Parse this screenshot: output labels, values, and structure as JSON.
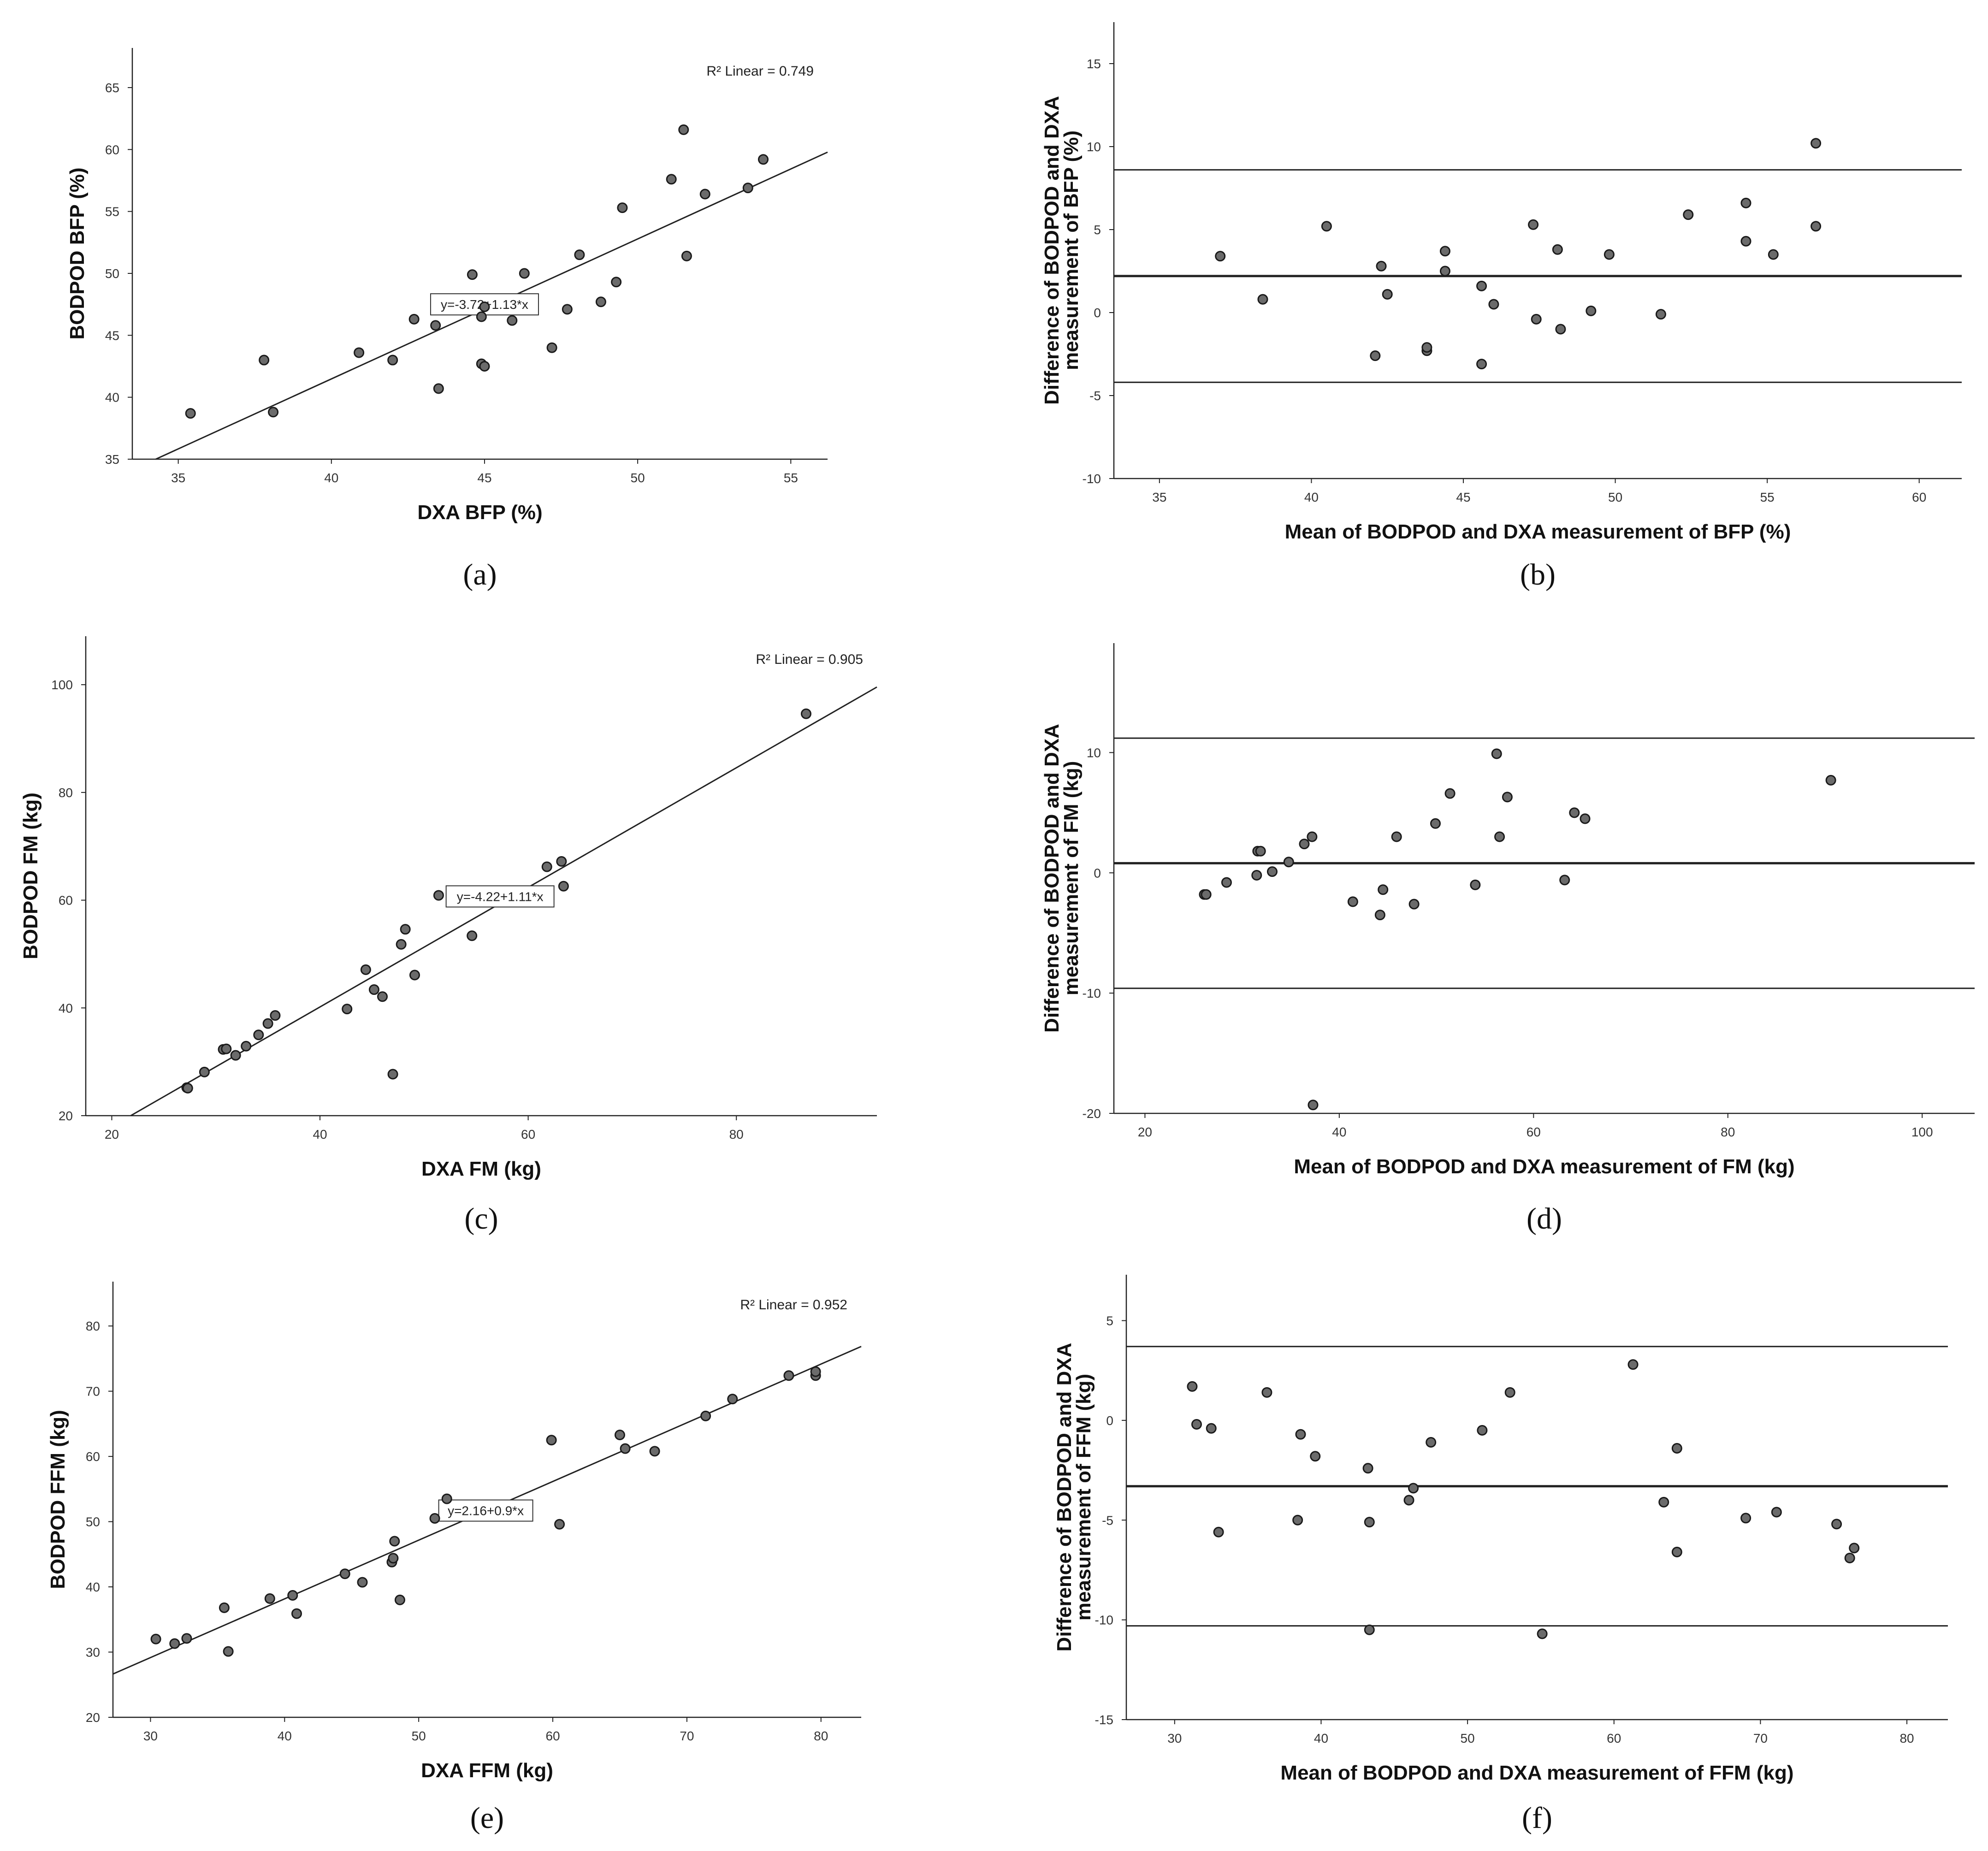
{
  "chart_data": [
    {
      "panel": "(a)",
      "type": "scatter",
      "plot": "regression",
      "xlabel": "DXA BFP (%)",
      "ylabel": "BODPOD BFP (%)",
      "xlim": [
        33.5,
        56.2
      ],
      "ylim": [
        35,
        68.2
      ],
      "xticks": [
        35,
        40,
        45,
        50,
        55
      ],
      "yticks": [
        35,
        40,
        45,
        50,
        55,
        60,
        65
      ],
      "r2_text": "R² Linear = 0.749",
      "equation": "y=-3.72+1.13*x",
      "equation_at": [
        45.0,
        47.5
      ],
      "fit": {
        "intercept": -3.72,
        "slope": 1.13
      },
      "points": [
        [
          35.4,
          38.7
        ],
        [
          37.8,
          43.0
        ],
        [
          38.1,
          38.8
        ],
        [
          40.9,
          43.6
        ],
        [
          42.0,
          43.0
        ],
        [
          42.7,
          46.3
        ],
        [
          43.4,
          45.8
        ],
        [
          43.5,
          40.7
        ],
        [
          44.6,
          49.9
        ],
        [
          44.9,
          42.7
        ],
        [
          45.0,
          42.5
        ],
        [
          44.9,
          46.5
        ],
        [
          45.0,
          47.3
        ],
        [
          45.9,
          46.2
        ],
        [
          46.3,
          50.0
        ],
        [
          47.2,
          44.0
        ],
        [
          47.7,
          47.1
        ],
        [
          48.1,
          51.5
        ],
        [
          48.8,
          47.7
        ],
        [
          49.3,
          49.3
        ],
        [
          49.5,
          55.3
        ],
        [
          51.1,
          57.6
        ],
        [
          51.5,
          61.6
        ],
        [
          51.6,
          51.4
        ],
        [
          52.2,
          56.4
        ],
        [
          53.6,
          56.9
        ],
        [
          54.1,
          59.2
        ]
      ]
    },
    {
      "panel": "(b)",
      "type": "scatter",
      "plot": "bland-altman",
      "xlabel": "Mean of BODPOD and DXA measurement of BFP (%)",
      "ylabel": [
        "Difference of BODPOD and DXA",
        "measurement of BFP (%)"
      ],
      "xlim": [
        33.5,
        61.4
      ],
      "ylim": [
        -10,
        17.5
      ],
      "xticks": [
        35,
        40,
        45,
        50,
        55,
        60
      ],
      "yticks": [
        -10,
        -5,
        0,
        5,
        10,
        15
      ],
      "hlines": [
        8.6,
        2.2,
        -4.2
      ],
      "points": [
        [
          37.0,
          3.4
        ],
        [
          38.4,
          0.8
        ],
        [
          40.5,
          5.2
        ],
        [
          42.1,
          -2.6
        ],
        [
          42.3,
          2.8
        ],
        [
          42.5,
          1.1
        ],
        [
          43.8,
          -2.3
        ],
        [
          43.8,
          -2.1
        ],
        [
          44.4,
          3.7
        ],
        [
          44.4,
          2.5
        ],
        [
          45.6,
          1.6
        ],
        [
          45.6,
          -3.1
        ],
        [
          46.0,
          0.5
        ],
        [
          47.3,
          5.3
        ],
        [
          47.4,
          -0.4
        ],
        [
          48.1,
          3.8
        ],
        [
          48.2,
          -1.0
        ],
        [
          49.2,
          0.1
        ],
        [
          49.8,
          3.5
        ],
        [
          51.5,
          -0.1
        ],
        [
          52.4,
          5.9
        ],
        [
          54.3,
          6.6
        ],
        [
          54.3,
          4.3
        ],
        [
          55.2,
          3.5
        ],
        [
          56.6,
          10.2
        ],
        [
          56.6,
          5.2
        ]
      ]
    },
    {
      "panel": "(c)",
      "type": "scatter",
      "plot": "regression",
      "xlabel": "DXA FM (kg)",
      "ylabel": "BODPOD FM (kg)",
      "xlim": [
        17.5,
        93.5
      ],
      "ylim": [
        20,
        109
      ],
      "xticks": [
        20,
        40,
        60,
        80
      ],
      "yticks": [
        20,
        40,
        60,
        80,
        100
      ],
      "r2_text": "R² Linear = 0.905",
      "equation": "y=-4.22+1.11*x",
      "equation_at": [
        57.3,
        60.7
      ],
      "fit": {
        "intercept": -4.22,
        "slope": 1.11
      },
      "points": [
        [
          27.2,
          25.2
        ],
        [
          27.3,
          25.1
        ],
        [
          28.9,
          28.1
        ],
        [
          30.7,
          32.3
        ],
        [
          31.0,
          32.4
        ],
        [
          31.9,
          31.2
        ],
        [
          32.9,
          32.9
        ],
        [
          34.1,
          35.0
        ],
        [
          35.0,
          37.1
        ],
        [
          35.7,
          38.6
        ],
        [
          42.6,
          39.8
        ],
        [
          44.4,
          47.1
        ],
        [
          45.2,
          43.4
        ],
        [
          46.0,
          42.1
        ],
        [
          47.0,
          27.7
        ],
        [
          47.8,
          51.8
        ],
        [
          48.2,
          54.6
        ],
        [
          49.1,
          46.1
        ],
        [
          51.4,
          60.9
        ],
        [
          54.6,
          53.4
        ],
        [
          61.8,
          66.2
        ],
        [
          63.2,
          67.2
        ],
        [
          63.4,
          62.6
        ],
        [
          86.7,
          94.6
        ]
      ]
    },
    {
      "panel": "(d)",
      "type": "scatter",
      "plot": "bland-altman",
      "xlabel": "Mean of BODPOD and DXA measurement of FM (kg)",
      "ylabel": [
        "Difference of BODPOD and DXA",
        "measurement of FM (kg)"
      ],
      "xlim": [
        16.8,
        105.4
      ],
      "ylim": [
        -20,
        19.1
      ],
      "xticks": [
        20,
        40,
        60,
        80,
        100
      ],
      "yticks": [
        -20,
        -10,
        0,
        10
      ],
      "hlines": [
        11.2,
        0.8,
        -9.6
      ],
      "points": [
        [
          26.1,
          -1.8
        ],
        [
          26.3,
          -1.8
        ],
        [
          28.4,
          -0.8
        ],
        [
          31.5,
          -0.2
        ],
        [
          31.6,
          1.8
        ],
        [
          31.9,
          1.8
        ],
        [
          33.1,
          0.1
        ],
        [
          34.8,
          0.9
        ],
        [
          36.4,
          2.4
        ],
        [
          37.2,
          3.0
        ],
        [
          37.3,
          -19.3
        ],
        [
          41.4,
          -2.4
        ],
        [
          44.2,
          -3.5
        ],
        [
          44.5,
          -1.4
        ],
        [
          45.9,
          3.0
        ],
        [
          47.7,
          -2.6
        ],
        [
          49.9,
          4.1
        ],
        [
          51.4,
          6.6
        ],
        [
          54.0,
          -1.0
        ],
        [
          56.2,
          9.9
        ],
        [
          56.5,
          3.0
        ],
        [
          57.3,
          6.3
        ],
        [
          63.2,
          -0.6
        ],
        [
          64.2,
          5.0
        ],
        [
          65.3,
          4.5
        ],
        [
          90.6,
          7.7
        ]
      ]
    },
    {
      "panel": "(e)",
      "type": "scatter",
      "plot": "regression",
      "xlabel": "DXA FFM (kg)",
      "ylabel": "BODPOD FFM (kg)",
      "xlim": [
        27.2,
        83.0
      ],
      "ylim": [
        20,
        86.8
      ],
      "xticks": [
        30,
        40,
        50,
        60,
        70,
        80
      ],
      "yticks": [
        20,
        30,
        40,
        50,
        60,
        70,
        80
      ],
      "r2_text": "R² Linear = 0.952",
      "equation": "y=2.16+0.9*x",
      "equation_at": [
        55.0,
        51.7
      ],
      "fit": {
        "intercept": 2.16,
        "slope": 0.9
      },
      "points": [
        [
          30.4,
          32.0
        ],
        [
          31.8,
          31.3
        ],
        [
          32.7,
          32.1
        ],
        [
          35.5,
          36.8
        ],
        [
          35.8,
          30.1
        ],
        [
          38.9,
          38.2
        ],
        [
          40.6,
          38.7
        ],
        [
          40.9,
          35.9
        ],
        [
          44.5,
          42.0
        ],
        [
          45.8,
          40.7
        ],
        [
          48.0,
          43.8
        ],
        [
          48.1,
          44.4
        ],
        [
          48.2,
          47.0
        ],
        [
          48.6,
          38.0
        ],
        [
          51.2,
          50.5
        ],
        [
          52.1,
          53.5
        ],
        [
          59.9,
          62.5
        ],
        [
          60.5,
          49.6
        ],
        [
          65.0,
          63.3
        ],
        [
          65.4,
          61.2
        ],
        [
          67.6,
          60.8
        ],
        [
          71.4,
          66.2
        ],
        [
          73.4,
          68.8
        ],
        [
          77.6,
          72.4
        ],
        [
          79.6,
          72.4
        ],
        [
          79.6,
          73.0
        ]
      ]
    },
    {
      "panel": "(f)",
      "type": "scatter",
      "plot": "bland-altman",
      "xlabel": "Mean of BODPOD and DXA measurement of FFM (kg)",
      "ylabel": [
        "Difference of BODPOD and DXA",
        "measurement of FFM (kg)"
      ],
      "xlim": [
        26.7,
        82.8
      ],
      "ylim": [
        -15,
        7.3
      ],
      "xticks": [
        30,
        40,
        50,
        60,
        70,
        80
      ],
      "yticks": [
        -15,
        -10,
        -5,
        0,
        5
      ],
      "hlines": [
        3.7,
        -3.3,
        -10.3
      ],
      "points": [
        [
          31.2,
          1.7
        ],
        [
          31.5,
          -0.2
        ],
        [
          32.5,
          -0.4
        ],
        [
          33.0,
          -5.6
        ],
        [
          36.3,
          1.4
        ],
        [
          38.4,
          -5.0
        ],
        [
          38.6,
          -0.7
        ],
        [
          39.6,
          -1.8
        ],
        [
          43.2,
          -2.4
        ],
        [
          43.3,
          -5.1
        ],
        [
          43.3,
          -10.5
        ],
        [
          46.0,
          -4.0
        ],
        [
          46.3,
          -3.4
        ],
        [
          47.5,
          -1.1
        ],
        [
          51.0,
          -0.5
        ],
        [
          52.9,
          1.4
        ],
        [
          55.1,
          -10.7
        ],
        [
          61.3,
          2.8
        ],
        [
          63.4,
          -4.1
        ],
        [
          64.3,
          -1.4
        ],
        [
          64.3,
          -6.6
        ],
        [
          69.0,
          -4.9
        ],
        [
          71.1,
          -4.6
        ],
        [
          75.2,
          -5.2
        ],
        [
          76.1,
          -6.9
        ],
        [
          76.4,
          -6.4
        ]
      ]
    }
  ]
}
